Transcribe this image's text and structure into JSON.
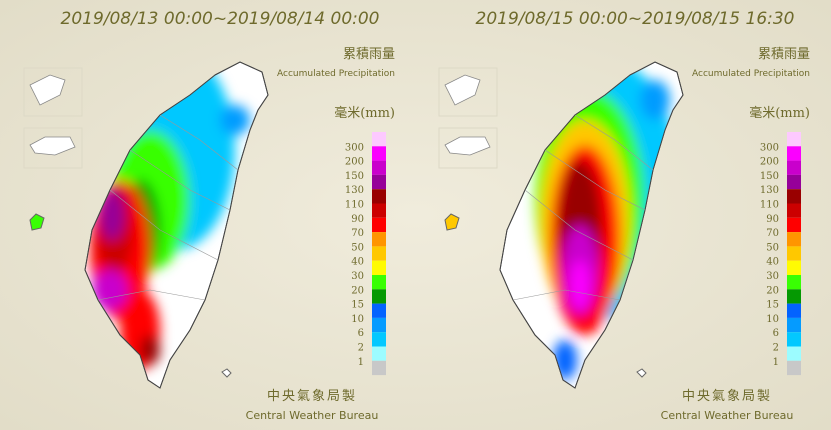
{
  "panels": [
    {
      "title": "2019/08/13 00:00~2019/08/14 00:00"
    },
    {
      "title": "2019/08/15 00:00~2019/08/15 16:30"
    }
  ],
  "legend": {
    "title": "累積雨量",
    "subtitle": "Accumulated Precipitation",
    "unit": "毫米(mm)",
    "labels": [
      300,
      200,
      150,
      130,
      110,
      90,
      70,
      50,
      40,
      30,
      20,
      15,
      10,
      6,
      2,
      1
    ],
    "colors": [
      "#fdc9ff",
      "#fb00ff",
      "#c900cc",
      "#960099",
      "#990000",
      "#cc0000",
      "#ff0000",
      "#ff9500",
      "#ffc800",
      "#fffb03",
      "#39ff03",
      "#059902",
      "#0363ff",
      "#059bff",
      "#03c8ff",
      "#9cfcff",
      "#c8c8c8"
    ]
  },
  "credit": {
    "zh": "中央氣象局製",
    "en": "Central Weather Bureau"
  }
}
